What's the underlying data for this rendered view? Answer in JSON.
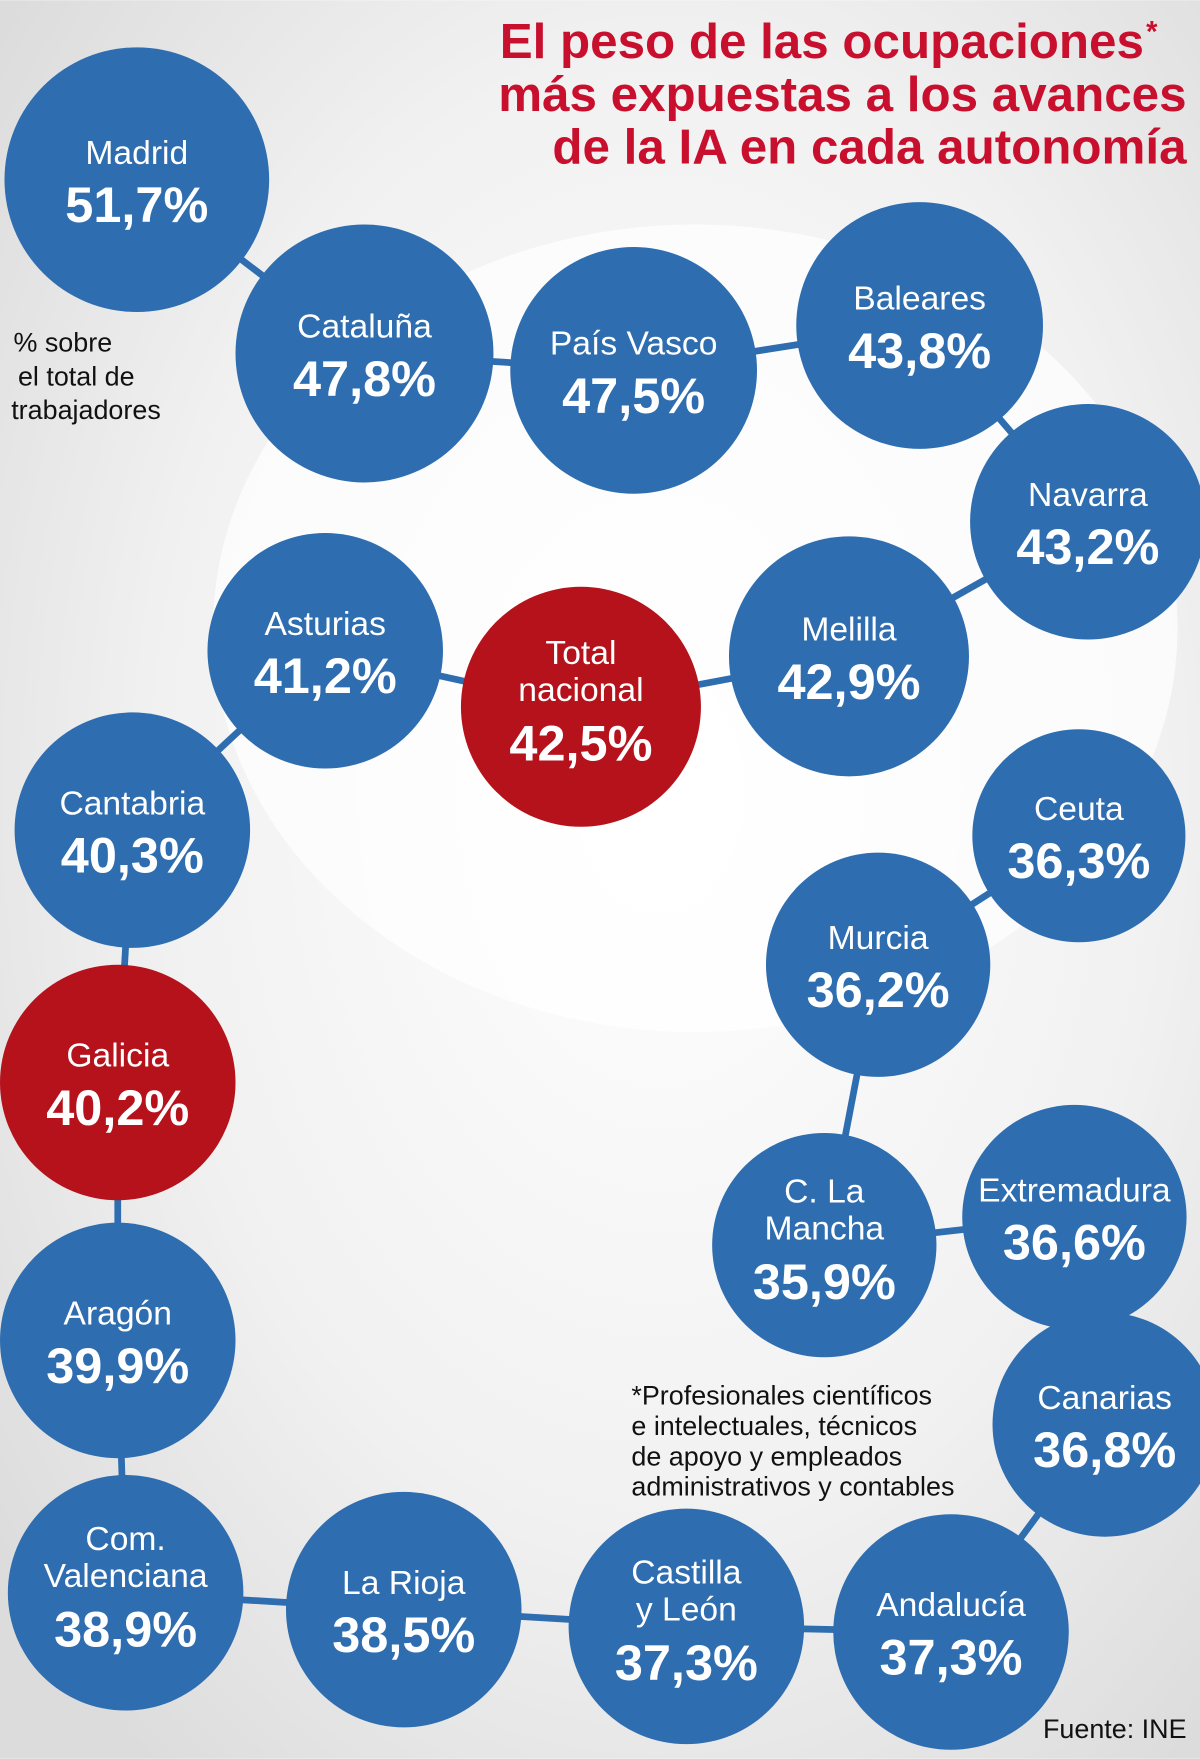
{
  "title": [
    "El peso de las ocupaciones",
    "más expuestas a los avances",
    "de la IA en cada autonomía"
  ],
  "title_mark": "*",
  "unit_note": [
    "% sobre",
    "el total de",
    "trabajadores"
  ],
  "footnote": [
    "*Profesionales científicos",
    "e intelectuales, técnicos",
    "de apoyo y empleados",
    "administrativos y contables"
  ],
  "source": "Fuente: INE",
  "nodes": [
    {
      "name": [
        "Madrid"
      ],
      "value": "51,7%"
    },
    {
      "name": [
        "Cataluña"
      ],
      "value": "47,8%"
    },
    {
      "name": [
        "País Vasco"
      ],
      "value": "47,5%"
    },
    {
      "name": [
        "Baleares"
      ],
      "value": "43,8%"
    },
    {
      "name": [
        "Navarra"
      ],
      "value": "43,2%"
    },
    {
      "name": [
        "Melilla"
      ],
      "value": "42,9%"
    },
    {
      "name": [
        "Total",
        "nacional"
      ],
      "value": "42,5%"
    },
    {
      "name": [
        "Asturias"
      ],
      "value": "41,2%"
    },
    {
      "name": [
        "Cantabria"
      ],
      "value": "40,3%"
    },
    {
      "name": [
        "Galicia"
      ],
      "value": "40,2%"
    },
    {
      "name": [
        "Aragón"
      ],
      "value": "39,9%"
    },
    {
      "name": [
        "Com.",
        "Valenciana"
      ],
      "value": "38,9%"
    },
    {
      "name": [
        "La Rioja"
      ],
      "value": "38,5%"
    },
    {
      "name": [
        "Castilla",
        "y León"
      ],
      "value": "37,3%"
    },
    {
      "name": [
        "Andalucía"
      ],
      "value": "37,3%"
    },
    {
      "name": [
        "Canarias"
      ],
      "value": "36,8%"
    },
    {
      "name": [
        "Extremadura"
      ],
      "value": "36,6%"
    },
    {
      "name": [
        "C. La",
        "Mancha"
      ],
      "value": "35,9%"
    },
    {
      "name": [
        "Murcia"
      ],
      "value": "36,2%"
    },
    {
      "name": [
        "Ceuta"
      ],
      "value": "36,3%"
    }
  ]
}
